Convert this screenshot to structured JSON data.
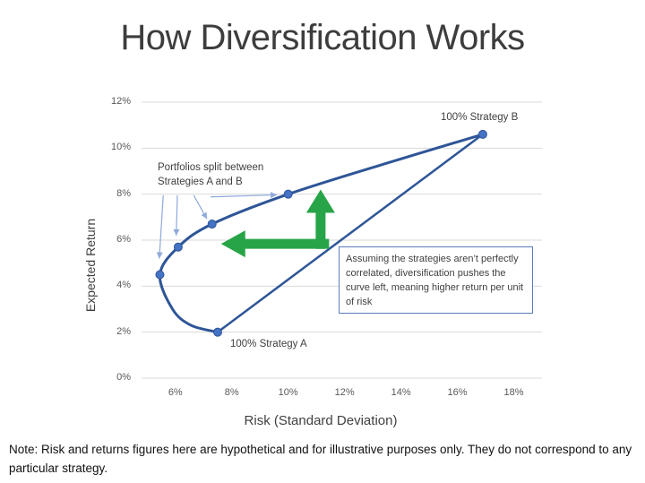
{
  "title": "How Diversification Works",
  "note": "Note: Risk and returns figures here are hypothetical and for illustrative purposes only. They do not correspond to any particular strategy.",
  "annotations": {
    "strategy_b": "100% Strategy B",
    "strategy_a": "100% Strategy A",
    "portfolios_split": "Portfolios split between\nStrategies A and B",
    "explanation": "Assuming the strategies aren’t perfectly correlated, diversification pushes the curve left, meaning higher return per unit of risk"
  },
  "colors": {
    "curve": "#2e5597",
    "marker_fill": "#4472c4",
    "green_arrow": "#28a448",
    "callout_arrow": "#8faadc",
    "gridline": "#d9d9d9",
    "axis_text": "#595959",
    "annotation_text": "#404040",
    "textbox_border": "#5b7cb8"
  },
  "chart_data": {
    "type": "line",
    "title": "",
    "xlabel": "Risk (Standard Deviation)",
    "ylabel": "Expected Return",
    "units": "percent",
    "x_range": [
      4.8,
      19.0
    ],
    "y_range": [
      0,
      12
    ],
    "grid": "horizontal",
    "legend": "none",
    "x_ticks": [
      {
        "value": 6,
        "label": "6%"
      },
      {
        "value": 8,
        "label": "8%"
      },
      {
        "value": 10,
        "label": "10%"
      },
      {
        "value": 12,
        "label": "12%"
      },
      {
        "value": 14,
        "label": "14%"
      },
      {
        "value": 16,
        "label": "16%"
      },
      {
        "value": 18,
        "label": "18%"
      }
    ],
    "y_ticks": [
      {
        "value": 0,
        "label": "0%"
      },
      {
        "value": 2,
        "label": "2%"
      },
      {
        "value": 4,
        "label": "4%"
      },
      {
        "value": 6,
        "label": "6%"
      },
      {
        "value": 8,
        "label": "8%"
      },
      {
        "value": 10,
        "label": "10%"
      },
      {
        "value": 12,
        "label": "12%"
      }
    ],
    "series": [
      {
        "name": "efficient-frontier-curve",
        "style": "smooth",
        "points": [
          [
            7.5,
            2.0
          ],
          [
            6.55,
            2.3
          ],
          [
            5.9,
            3.0
          ],
          [
            5.45,
            4.5
          ],
          [
            6.1,
            5.7
          ],
          [
            7.3,
            6.7
          ],
          [
            10.0,
            8.0
          ],
          [
            13.5,
            9.35
          ],
          [
            16.9,
            10.6
          ]
        ]
      },
      {
        "name": "a-to-b-straight-line",
        "style": "straight",
        "points": [
          [
            16.9,
            10.6
          ],
          [
            7.5,
            2.0
          ]
        ]
      }
    ],
    "markers": [
      {
        "x": 7.5,
        "y": 2.0,
        "label": "100% Strategy A"
      },
      {
        "x": 5.45,
        "y": 4.5
      },
      {
        "x": 6.1,
        "y": 5.7
      },
      {
        "x": 7.3,
        "y": 6.7
      },
      {
        "x": 10.0,
        "y": 8.0
      },
      {
        "x": 16.9,
        "y": 10.6,
        "label": "100% Strategy B"
      }
    ],
    "green_arrows": {
      "up": {
        "x": 11.15,
        "y_from": 5.62,
        "y_to": 8.2
      },
      "left": {
        "y": 5.84,
        "x_from": 11.45,
        "x_to": 7.62
      }
    },
    "callout_arrows": [
      {
        "from": [
          5.57,
          7.95
        ],
        "to": [
          5.43,
          5.2
        ]
      },
      {
        "from": [
          6.07,
          7.95
        ],
        "to": [
          6.03,
          6.2
        ]
      },
      {
        "from": [
          6.65,
          7.95
        ],
        "to": [
          7.12,
          6.92
        ]
      },
      {
        "from": [
          7.25,
          7.88
        ],
        "to": [
          9.6,
          7.97
        ]
      }
    ]
  }
}
